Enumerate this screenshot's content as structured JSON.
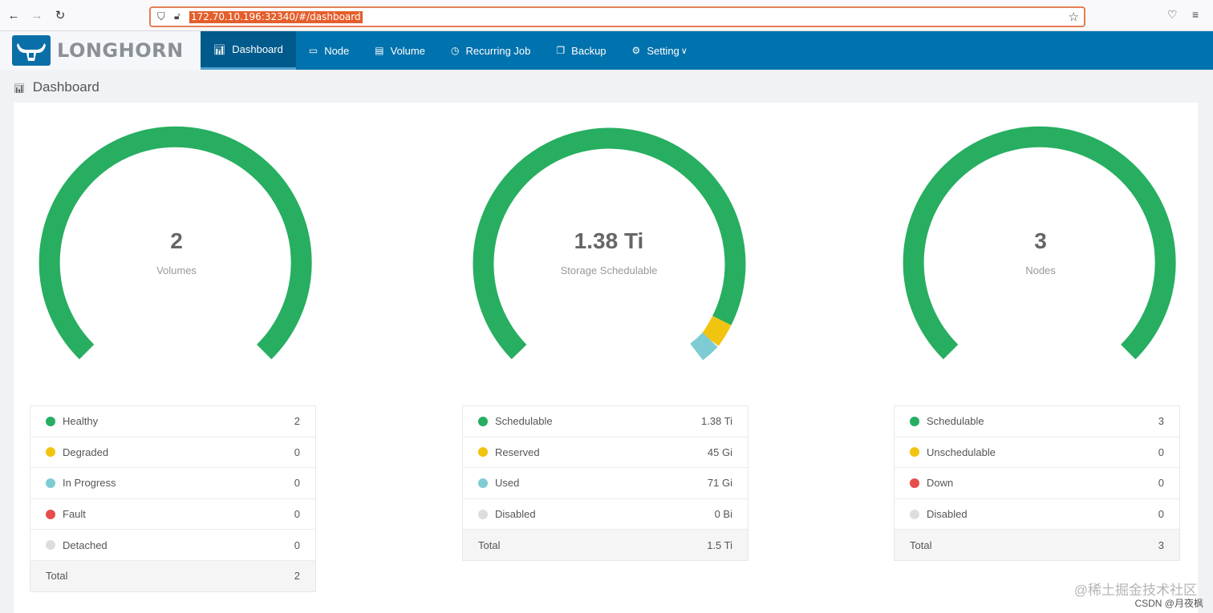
{
  "browser": {
    "url": "172.70.10.196:32340/#/dashboard"
  },
  "header": {
    "logo_text": "LONGHORN",
    "menu": [
      {
        "label": "Dashboard",
        "active": true
      },
      {
        "label": "Node"
      },
      {
        "label": "Volume"
      },
      {
        "label": "Recurring Job"
      },
      {
        "label": "Backup"
      },
      {
        "label": "Setting"
      }
    ]
  },
  "page": {
    "title": "Dashboard"
  },
  "colors": {
    "green": "#27ae60",
    "yellow": "#f1c40f",
    "teal": "#7ecbd3",
    "red": "#e74c4c",
    "grey": "#dddddd"
  },
  "volumes": {
    "value": "2",
    "label": "Volumes",
    "rows": [
      {
        "name": "Healthy",
        "value": "2",
        "color": "#27ae60"
      },
      {
        "name": "Degraded",
        "value": "0",
        "color": "#f1c40f"
      },
      {
        "name": "In Progress",
        "value": "0",
        "color": "#7ecbd3"
      },
      {
        "name": "Fault",
        "value": "0",
        "color": "#e74c4c"
      },
      {
        "name": "Detached",
        "value": "0",
        "color": "#dddddd"
      }
    ],
    "total_label": "Total",
    "total_value": "2"
  },
  "storage": {
    "value": "1.38 Ti",
    "label": "Storage Schedulable",
    "rows": [
      {
        "name": "Schedulable",
        "value": "1.38 Ti",
        "color": "#27ae60"
      },
      {
        "name": "Reserved",
        "value": "45 Gi",
        "color": "#f1c40f"
      },
      {
        "name": "Used",
        "value": "71 Gi",
        "color": "#7ecbd3"
      },
      {
        "name": "Disabled",
        "value": "0 Bi",
        "color": "#dddddd"
      }
    ],
    "total_label": "Total",
    "total_value": "1.5 Ti"
  },
  "nodes": {
    "value": "3",
    "label": "Nodes",
    "rows": [
      {
        "name": "Schedulable",
        "value": "3",
        "color": "#27ae60"
      },
      {
        "name": "Unschedulable",
        "value": "0",
        "color": "#f1c40f"
      },
      {
        "name": "Down",
        "value": "0",
        "color": "#e74c4c"
      },
      {
        "name": "Disabled",
        "value": "0",
        "color": "#dddddd"
      }
    ],
    "total_label": "Total",
    "total_value": "3"
  },
  "watermark": {
    "line1": "@稀土掘金技术社区",
    "line2": "CSDN @月夜枫"
  }
}
